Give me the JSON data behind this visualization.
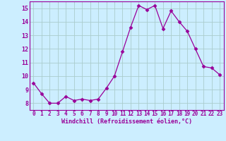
{
  "x": [
    0,
    1,
    2,
    3,
    4,
    5,
    6,
    7,
    8,
    9,
    10,
    11,
    12,
    13,
    14,
    15,
    16,
    17,
    18,
    19,
    20,
    21,
    22,
    23
  ],
  "y": [
    9.5,
    8.7,
    8.0,
    8.0,
    8.5,
    8.2,
    8.3,
    8.2,
    8.3,
    9.1,
    10.0,
    11.8,
    13.6,
    15.2,
    14.9,
    15.2,
    13.5,
    14.8,
    14.0,
    13.3,
    12.0,
    10.7,
    10.6,
    10.1
  ],
  "line_color": "#990099",
  "marker": "D",
  "marker_size": 2.5,
  "bg_color": "#cceeff",
  "grid_color": "#aacccc",
  "xlabel": "Windchill (Refroidissement éolien,°C)",
  "xlabel_color": "#990099",
  "tick_color": "#990099",
  "ylim": [
    7.5,
    15.5
  ],
  "xlim": [
    -0.5,
    23.5
  ],
  "yticks": [
    8,
    9,
    10,
    11,
    12,
    13,
    14,
    15
  ],
  "xticks": [
    0,
    1,
    2,
    3,
    4,
    5,
    6,
    7,
    8,
    9,
    10,
    11,
    12,
    13,
    14,
    15,
    16,
    17,
    18,
    19,
    20,
    21,
    22,
    23
  ],
  "tick_fontsize": 5.5,
  "xlabel_fontsize": 6.0
}
